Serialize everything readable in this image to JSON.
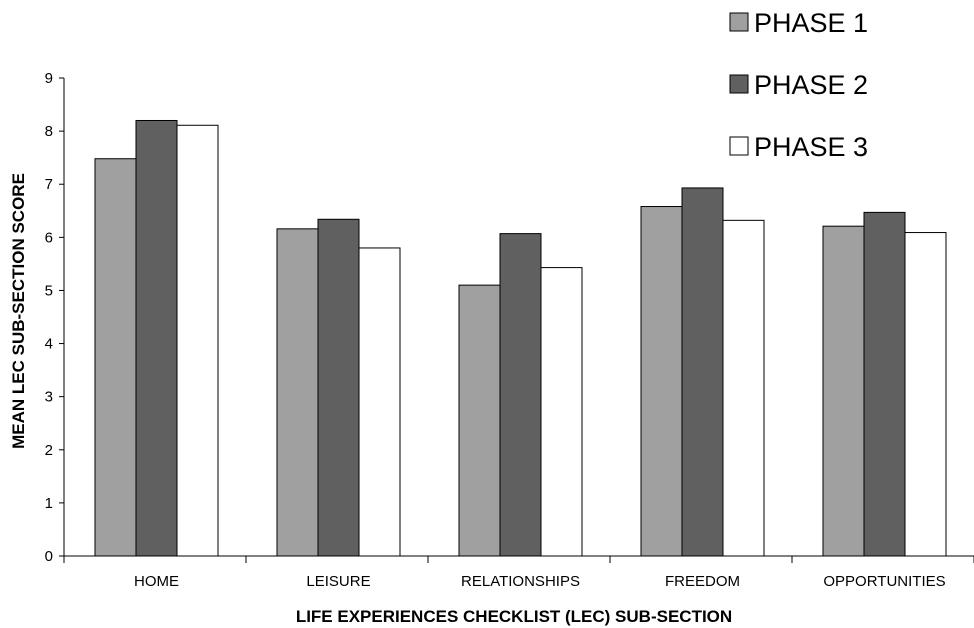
{
  "chart_data": {
    "type": "bar",
    "title": "",
    "xlabel": "LIFE EXPERIENCES CHECKLIST (LEC) SUB-SECTION",
    "ylabel": "MEAN LEC SUB-SECTION SCORE",
    "ylim": [
      0,
      9
    ],
    "yticks": [
      0,
      1,
      2,
      3,
      4,
      5,
      6,
      7,
      8,
      9
    ],
    "grid": false,
    "legend_position": "top-right",
    "categories": [
      "HOME",
      "LEISURE",
      "RELATIONSHIPS",
      "FREEDOM",
      "OPPORTUNITIES"
    ],
    "series": [
      {
        "name": "PHASE 1",
        "color": "#a0a0a0",
        "values": [
          7.48,
          6.16,
          5.1,
          6.58,
          6.21
        ]
      },
      {
        "name": "PHASE 2",
        "color": "#606060",
        "values": [
          8.2,
          6.34,
          6.07,
          6.93,
          6.47
        ]
      },
      {
        "name": "PHASE 3",
        "color": "#ffffff",
        "values": [
          8.11,
          5.8,
          5.43,
          6.32,
          6.09
        ]
      }
    ]
  }
}
